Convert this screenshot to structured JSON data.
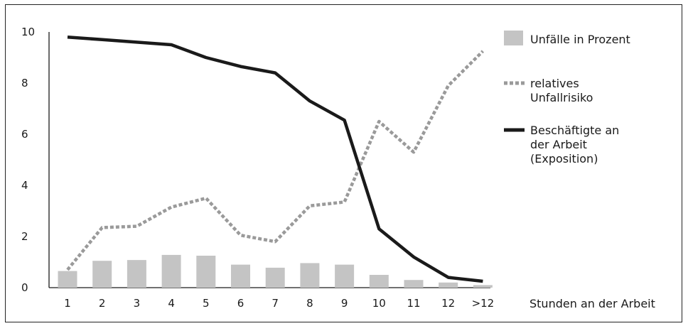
{
  "chart_data": {
    "type": "bar",
    "categories": [
      "1",
      "2",
      "3",
      "4",
      "5",
      "6",
      "7",
      "8",
      "9",
      "10",
      "11",
      "12",
      ">12"
    ],
    "xlabel": "Stunden an der Arbeit",
    "ylabel": "",
    "ylim": [
      0,
      10
    ],
    "yticks": [
      "0",
      "2",
      "4",
      "6",
      "8",
      "10"
    ],
    "grid": false,
    "legend_position": "right",
    "series": [
      {
        "name": "Unfälle in Prozent",
        "type": "bar",
        "color": "#c4c4c4",
        "values": [
          0.65,
          1.05,
          1.08,
          1.28,
          1.25,
          0.9,
          0.78,
          0.96,
          0.9,
          0.5,
          0.3,
          0.2,
          0.1
        ]
      },
      {
        "name": "relatives Unfallrisiko",
        "type": "line",
        "style": "dotted",
        "color": "#9a9a9a",
        "values": [
          0.7,
          2.35,
          2.4,
          3.15,
          3.5,
          2.05,
          1.8,
          3.2,
          3.35,
          6.5,
          5.3,
          7.9,
          9.25
        ]
      },
      {
        "name": "Beschäftigte an der Arbeit (Exposition)",
        "type": "line",
        "style": "solid",
        "color": "#1a1a1a",
        "values": [
          9.8,
          9.7,
          9.6,
          9.5,
          9.0,
          8.65,
          8.4,
          7.3,
          6.55,
          2.3,
          1.2,
          0.4,
          0.25
        ]
      }
    ]
  },
  "legend": {
    "items": [
      {
        "lines": [
          "Unfälle in Prozent"
        ]
      },
      {
        "lines": [
          "relatives",
          "Unfallrisiko"
        ]
      },
      {
        "lines": [
          "Beschäftigte an",
          "der Arbeit",
          "(Exposition)"
        ]
      }
    ]
  }
}
